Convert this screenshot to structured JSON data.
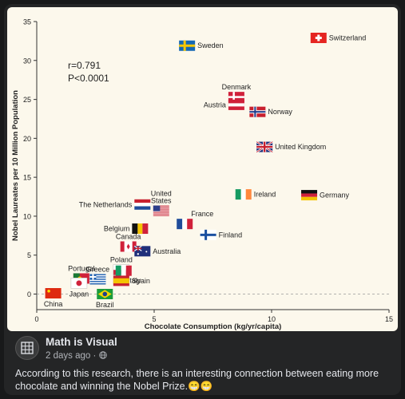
{
  "chart_data": {
    "type": "scatter",
    "xlabel": "Chocolate Consumption (kg/yr/capita)",
    "ylabel": "Nobel Laureates per 10 Million Population",
    "xlim": [
      0,
      15
    ],
    "ylim": [
      -2,
      35
    ],
    "xticks": [
      0,
      5,
      10,
      15
    ],
    "yticks": [
      0,
      5,
      10,
      15,
      20,
      25,
      30,
      35
    ],
    "baseline_dashed_at_y": 0,
    "annotation_lines": [
      "r=0.791",
      "P<0.0001"
    ],
    "points": [
      {
        "country": "Switzerland",
        "x": 12.0,
        "y": 32.9,
        "flag": "switzerland",
        "label_pos": "right"
      },
      {
        "country": "Sweden",
        "x": 6.4,
        "y": 31.9,
        "flag": "sweden",
        "label_pos": "right"
      },
      {
        "country": "Denmark",
        "x": 8.5,
        "y": 25.3,
        "flag": "denmark",
        "label_pos": "above"
      },
      {
        "country": "Austria",
        "x": 8.5,
        "y": 24.3,
        "flag": "austria",
        "label_pos": "left"
      },
      {
        "country": "Norway",
        "x": 9.4,
        "y": 23.4,
        "flag": "norway",
        "label_pos": "right"
      },
      {
        "country": "United Kingdom",
        "x": 9.7,
        "y": 18.9,
        "flag": "uk",
        "label_pos": "right"
      },
      {
        "country": "Ireland",
        "x": 8.8,
        "y": 12.8,
        "flag": "ireland",
        "label_pos": "right"
      },
      {
        "country": "Germany",
        "x": 11.6,
        "y": 12.7,
        "flag": "germany",
        "label_pos": "right"
      },
      {
        "country": "United States",
        "x": 5.3,
        "y": 10.7,
        "flag": "us",
        "label_pos": "above"
      },
      {
        "country": "The Netherlands",
        "x": 4.5,
        "y": 11.5,
        "flag": "netherlands",
        "label_pos": "left"
      },
      {
        "country": "France",
        "x": 6.3,
        "y": 9.0,
        "flag": "france",
        "label_pos": "above-right"
      },
      {
        "country": "Belgium",
        "x": 4.4,
        "y": 8.4,
        "flag": "belgium",
        "label_pos": "left"
      },
      {
        "country": "Finland",
        "x": 7.3,
        "y": 7.6,
        "flag": "finland",
        "label_pos": "right"
      },
      {
        "country": "Canada",
        "x": 3.9,
        "y": 6.1,
        "flag": "canada",
        "label_pos": "above"
      },
      {
        "country": "Australia",
        "x": 4.5,
        "y": 5.5,
        "flag": "australia",
        "label_pos": "right"
      },
      {
        "country": "Poland",
        "x": 3.6,
        "y": 3.1,
        "flag": "poland",
        "label_pos": "above"
      },
      {
        "country": "Portugal",
        "x": 1.9,
        "y": 2.0,
        "flag": "portugal",
        "label_pos": "above"
      },
      {
        "country": "Greece",
        "x": 2.6,
        "y": 1.9,
        "flag": "greece",
        "label_pos": "above"
      },
      {
        "country": "Italy",
        "x": 3.7,
        "y": 3.0,
        "flag": "italy",
        "label_pos": "below-right"
      },
      {
        "country": "Japan",
        "x": 1.8,
        "y": 1.4,
        "flag": "japan",
        "label_pos": "below"
      },
      {
        "country": "Spain",
        "x": 3.6,
        "y": 1.7,
        "flag": "spain",
        "label_pos": "right"
      },
      {
        "country": "China",
        "x": 0.7,
        "y": 0.1,
        "flag": "china",
        "label_pos": "below"
      },
      {
        "country": "Brazil",
        "x": 2.9,
        "y": 0.0,
        "flag": "brazil",
        "label_pos": "below"
      }
    ]
  },
  "post": {
    "author": "Math is Visual",
    "time": "2 days ago",
    "separator": "·",
    "audience_icon": "globe-icon",
    "avatar_icon": "grid-logo-icon",
    "caption": "According to this research, there is an interesting connection between eating more chocolate and winning the Nobel Prize.😁😁"
  }
}
